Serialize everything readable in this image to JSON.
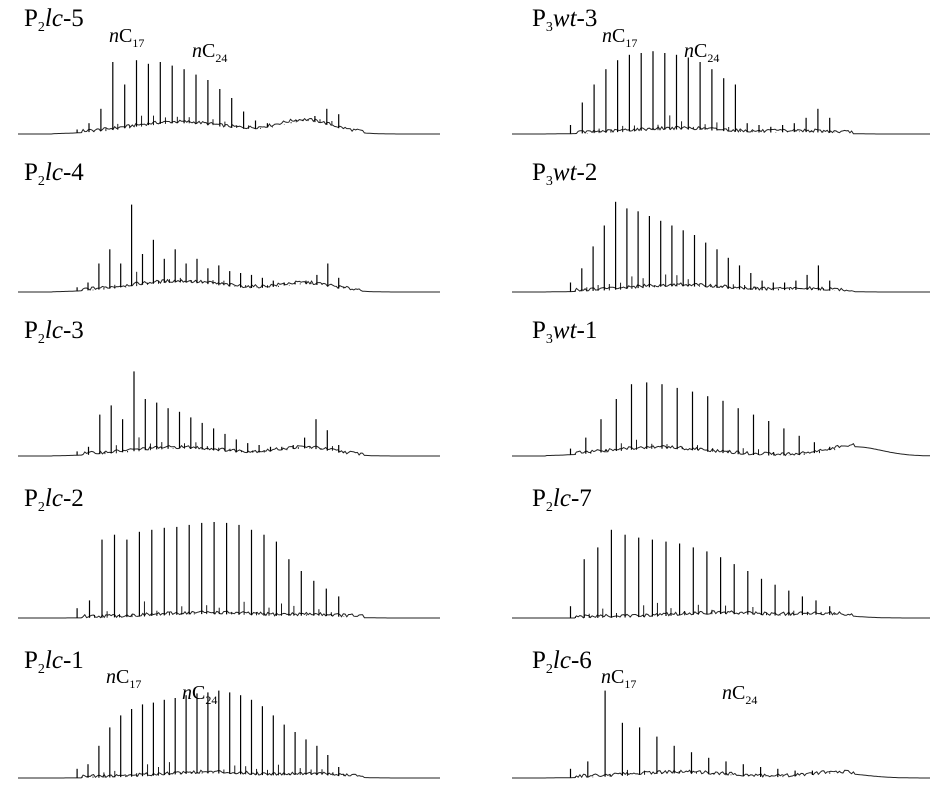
{
  "chart_data": {
    "type": "line",
    "description_kind": "gas chromatograms (TIC) of saturated hydrocarbons",
    "axes_shown": false,
    "panels": [
      {
        "id": "P2lc-5",
        "title": {
          "a": "P",
          "s": "2",
          "b": "lc",
          "c": "-5"
        },
        "col": 0,
        "row": 0,
        "annotations": [
          {
            "n": "n",
            "c": "C",
            "sub": "17"
          },
          {
            "n": "n",
            "c": "C",
            "sub": "24"
          }
        ],
        "peaks_relative": [
          0.05,
          0.12,
          0.28,
          0.8,
          0.55,
          0.82,
          0.78,
          0.8,
          0.76,
          0.72,
          0.66,
          0.6,
          0.5,
          0.4,
          0.25,
          0.15,
          0.12,
          0.1,
          0.12,
          0.16,
          0.2,
          0.28,
          0.22
        ],
        "hump": {
          "center": 0.38,
          "height": 0.12,
          "second_center": 0.68,
          "second_height": 0.14
        }
      },
      {
        "id": "P2lc-4",
        "title": {
          "a": "P",
          "s": "2",
          "b": "lc",
          "c": "-4"
        },
        "col": 0,
        "row": 1,
        "annotations": [],
        "peaks_relative": [
          0.05,
          0.1,
          0.3,
          0.45,
          0.3,
          0.92,
          0.4,
          0.55,
          0.35,
          0.45,
          0.3,
          0.35,
          0.25,
          0.28,
          0.22,
          0.2,
          0.18,
          0.15,
          0.12,
          0.1,
          0.1,
          0.12,
          0.18,
          0.3,
          0.15
        ],
        "hump": {
          "center": 0.38,
          "height": 0.1,
          "second_center": 0.68,
          "second_height": 0.08
        }
      },
      {
        "id": "P2lc-3",
        "title": {
          "a": "P",
          "s": "2",
          "b": "lc",
          "c": "-3"
        },
        "col": 0,
        "row": 2,
        "annotations": [],
        "peaks_relative": [
          0.05,
          0.1,
          0.45,
          0.55,
          0.4,
          0.92,
          0.62,
          0.58,
          0.52,
          0.48,
          0.42,
          0.36,
          0.3,
          0.24,
          0.18,
          0.14,
          0.12,
          0.1,
          0.1,
          0.12,
          0.2,
          0.4,
          0.28,
          0.12
        ],
        "hump": {
          "center": 0.38,
          "height": 0.08,
          "second_center": 0.68,
          "second_height": 0.08
        }
      },
      {
        "id": "P2lc-2",
        "title": {
          "a": "P",
          "s": "2",
          "b": "lc",
          "c": "-2"
        },
        "col": 0,
        "row": 3,
        "annotations": [],
        "peaks_relative": [
          0.1,
          0.18,
          0.8,
          0.85,
          0.8,
          0.88,
          0.9,
          0.92,
          0.93,
          0.95,
          0.97,
          0.98,
          0.97,
          0.95,
          0.9,
          0.85,
          0.78,
          0.6,
          0.48,
          0.38,
          0.3,
          0.22
        ],
        "hump": {
          "center": 0.45,
          "height": 0.04,
          "second_center": 0.7,
          "second_height": 0.02
        }
      },
      {
        "id": "P2lc-1",
        "title": {
          "a": "P",
          "s": "2",
          "b": "lc",
          "c": "-1"
        },
        "col": 0,
        "row": 4,
        "annotations": [
          {
            "n": "n",
            "c": "C",
            "sub": "17"
          },
          {
            "n": "n",
            "c": "C",
            "sub": "24"
          }
        ],
        "peaks_relative": [
          0.1,
          0.15,
          0.35,
          0.55,
          0.68,
          0.75,
          0.8,
          0.82,
          0.85,
          0.87,
          0.9,
          0.92,
          0.93,
          0.95,
          0.93,
          0.9,
          0.85,
          0.78,
          0.68,
          0.58,
          0.5,
          0.42,
          0.35,
          0.25,
          0.12
        ],
        "hump": {
          "center": 0.45,
          "height": 0.05,
          "second_center": 0.7,
          "second_height": 0.03
        }
      },
      {
        "id": "P3wt-3",
        "title": {
          "a": "P",
          "s": "3",
          "b": "wt",
          "c": "-3"
        },
        "col": 1,
        "row": 0,
        "annotations": [
          {
            "n": "n",
            "c": "C",
            "sub": "17"
          },
          {
            "n": "n",
            "c": "C",
            "sub": "24"
          }
        ],
        "peaks_relative": [
          0.1,
          0.35,
          0.55,
          0.72,
          0.82,
          0.88,
          0.9,
          0.92,
          0.9,
          0.88,
          0.85,
          0.8,
          0.72,
          0.62,
          0.55,
          0.12,
          0.1,
          0.08,
          0.1,
          0.12,
          0.18,
          0.28,
          0.18
        ],
        "hump": {
          "center": 0.4,
          "height": 0.05,
          "second_center": 0.7,
          "second_height": 0.02
        }
      },
      {
        "id": "P3wt-2",
        "title": {
          "a": "P",
          "s": "3",
          "b": "wt",
          "c": "-2"
        },
        "col": 1,
        "row": 1,
        "annotations": [],
        "peaks_relative": [
          0.1,
          0.25,
          0.48,
          0.7,
          0.95,
          0.88,
          0.85,
          0.8,
          0.75,
          0.7,
          0.65,
          0.6,
          0.52,
          0.45,
          0.36,
          0.28,
          0.2,
          0.12,
          0.1,
          0.1,
          0.12,
          0.18,
          0.28,
          0.12
        ],
        "hump": {
          "center": 0.4,
          "height": 0.06,
          "second_center": 0.7,
          "second_height": 0.02
        }
      },
      {
        "id": "P3wt-1",
        "title": {
          "a": "P",
          "s": "3",
          "b": "wt",
          "c": "-1"
        },
        "col": 1,
        "row": 2,
        "annotations": [],
        "peaks_relative": [
          0.08,
          0.2,
          0.4,
          0.62,
          0.78,
          0.8,
          0.78,
          0.74,
          0.7,
          0.65,
          0.6,
          0.52,
          0.45,
          0.38,
          0.3,
          0.22,
          0.15,
          0.1
        ],
        "hump": {
          "center": 0.35,
          "height": 0.08,
          "second_center": 0.82,
          "second_height": 0.1
        }
      },
      {
        "id": "P2lc-7",
        "title": {
          "a": "P",
          "s": "2",
          "b": "lc",
          "c": "-7"
        },
        "col": 1,
        "row": 3,
        "annotations": [],
        "peaks_relative": [
          0.12,
          0.6,
          0.72,
          0.9,
          0.85,
          0.82,
          0.8,
          0.78,
          0.76,
          0.72,
          0.68,
          0.62,
          0.55,
          0.48,
          0.4,
          0.34,
          0.28,
          0.22,
          0.18,
          0.12
        ],
        "hump": {
          "center": 0.5,
          "height": 0.04,
          "second_center": 0.75,
          "second_height": 0.03
        }
      },
      {
        "id": "P2lc-6",
        "title": {
          "a": "P",
          "s": "2",
          "b": "lc",
          "c": "-6"
        },
        "col": 1,
        "row": 4,
        "annotations": [
          {
            "n": "n",
            "c": "C",
            "sub": "17"
          },
          {
            "n": "n",
            "c": "C",
            "sub": "24"
          }
        ],
        "peaks_relative": [
          0.1,
          0.18,
          0.95,
          0.6,
          0.55,
          0.45,
          0.35,
          0.28,
          0.22,
          0.18,
          0.15,
          0.12,
          0.1,
          0.08,
          0.08,
          0.06
        ],
        "hump": {
          "center": 0.4,
          "height": 0.05,
          "second_center": 0.78,
          "second_height": 0.05
        }
      }
    ]
  }
}
